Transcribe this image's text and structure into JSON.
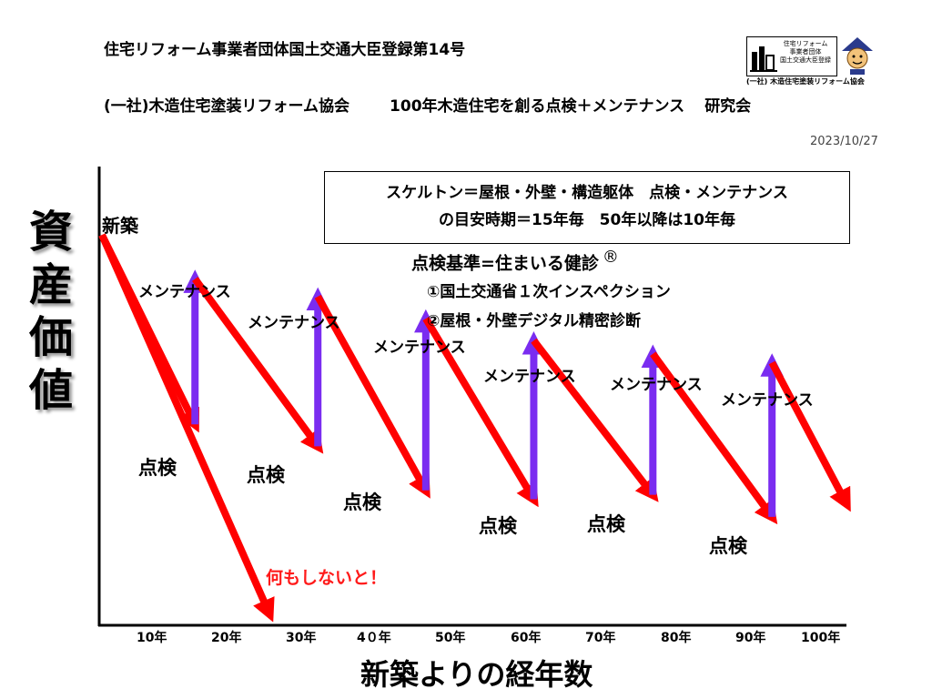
{
  "header": {
    "registration": "住宅リフォーム事業者団体国土交通大臣登録第14号",
    "association": "(一社)木造住宅塗装リフォーム協会",
    "study_group": "100年木造住宅を創る点検＋メンテナンス",
    "study_group_suffix": "研究会",
    "date": "2023/10/27"
  },
  "logo": {
    "text_lines": [
      "住宅リフォーム",
      "事業者団体",
      "国土交通大臣登録"
    ],
    "caption": "(一社) 木造住宅塗装リフォーム協会"
  },
  "info_box": {
    "line1": "スケルトン＝屋根・外壁・構造躯体　点検・メンテナンス",
    "line2": "の目安時期＝15年毎　50年以降は10年毎"
  },
  "inspection_standard": {
    "title": "点検基準=住まいる健診",
    "registered_mark": "®",
    "items": [
      "①国土交通省１次インスペクション",
      "②屋根・外壁デジタル精密診断"
    ]
  },
  "colors": {
    "decline_arrow": "#ff0000",
    "maintenance_arrow": "#7a2cf0",
    "warning_text": "#ff1a1a"
  },
  "chart_data": {
    "type": "line",
    "ylabel": "資産価値",
    "xlabel": "新築よりの経年数",
    "x_ticks": [
      "10年",
      "20年",
      "30年",
      "4０年",
      "50年",
      "60年",
      "70年",
      "80年",
      "90年",
      "100年"
    ],
    "grid": false,
    "annotations": {
      "new_build": "新築",
      "maintenance": "メンテナンス",
      "inspection": "点検",
      "do_nothing": "何もしないと！"
    },
    "series": [
      {
        "name": "",
        "comment": "with inspection + maintenance (sawtooth)",
        "points": [
          {
            "x": 0,
            "y": 88
          },
          {
            "x": 12.5,
            "y": 45
          },
          {
            "x": 12.5,
            "y": 78
          },
          {
            "x": 29,
            "y": 40
          },
          {
            "x": 29,
            "y": 74
          },
          {
            "x": 43.5,
            "y": 30
          },
          {
            "x": 43.5,
            "y": 69
          },
          {
            "x": 58,
            "y": 28
          },
          {
            "x": 58,
            "y": 64
          },
          {
            "x": 74,
            "y": 29
          },
          {
            "x": 74,
            "y": 61
          },
          {
            "x": 90,
            "y": 24
          },
          {
            "x": 90,
            "y": 59
          },
          {
            "x": 100,
            "y": 27
          }
        ]
      },
      {
        "name": "",
        "comment": "no maintenance",
        "points": [
          {
            "x": 0,
            "y": 88
          },
          {
            "x": 22.5,
            "y": 2
          }
        ]
      }
    ],
    "maintenance_x": [
      12.5,
      29,
      43.5,
      58,
      74,
      90
    ],
    "xlim": [
      0,
      100
    ],
    "ylim": [
      0,
      100
    ]
  }
}
